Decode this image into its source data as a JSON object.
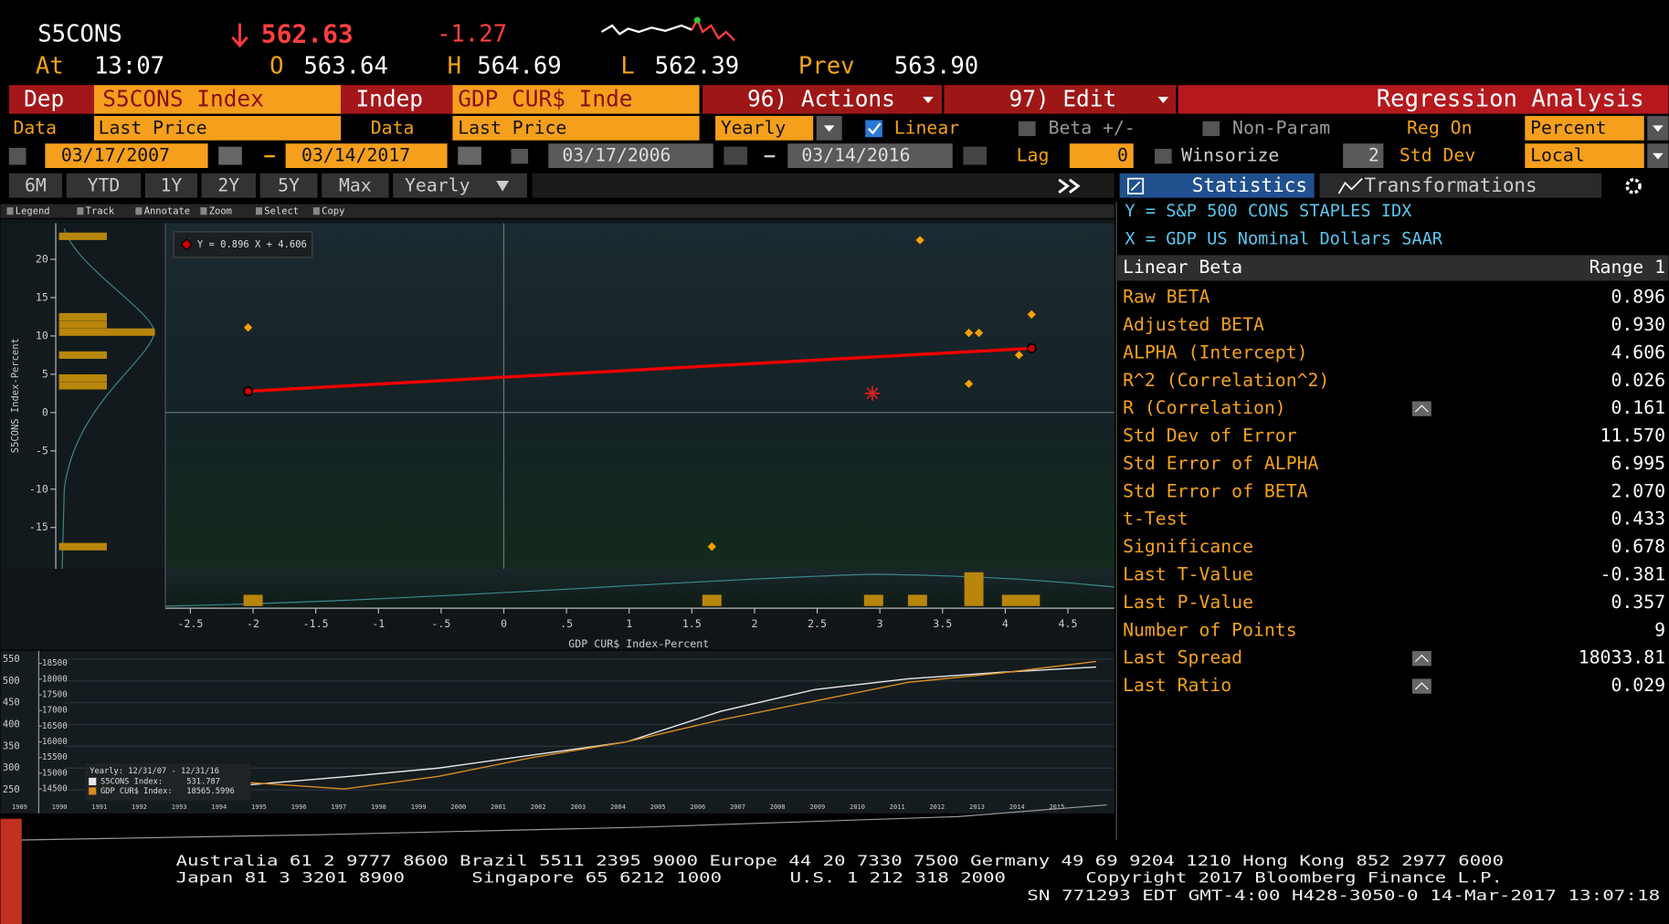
{
  "header": {
    "ticker": "S5CONS",
    "last": "562.63",
    "change": "-1.27",
    "at_label": "At",
    "time": "13:07",
    "open_label": "O",
    "open": "563.64",
    "high_label": "H",
    "high": "564.69",
    "low_label": "L",
    "low": "562.39",
    "prev_label": "Prev",
    "prev": "563.90"
  },
  "toolbar": {
    "dep_label": "Dep",
    "dep": "S5CONS Index",
    "indep_label": "Indep",
    "indep": "GDP CUR$ Inde",
    "actions": "96) Actions",
    "edit": "97) Edit",
    "title": "Regression Analysis"
  },
  "settings": {
    "dep_data_label": "Data",
    "dep_data": "Last Price",
    "indep_data_label": "Data",
    "indep_data": "Last Price",
    "frequency": "Yearly",
    "linear": "Linear",
    "beta": "Beta +/-",
    "non_param": "Non-Param",
    "reg_on_label": "Reg On",
    "reg_on": "Percent",
    "dep_start": "03/17/2007",
    "dep_end": "03/14/2017",
    "indep_start": "03/17/2006",
    "indep_end": "03/14/2016",
    "lag_label": "Lag",
    "lag": "0",
    "winsorize": "Winsorize",
    "std_dev": "2",
    "std_dev_label": "Std Dev",
    "std_mode": "Local"
  },
  "tabs": [
    "6M",
    "YTD",
    "1Y",
    "2Y",
    "5Y",
    "Max"
  ],
  "tab_period": "Yearly",
  "panel_tabs": [
    "Statistics",
    "Transformations"
  ],
  "chart_tools": [
    "Legend",
    "Track",
    "Annotate",
    "Zoom",
    "Select",
    "Copy"
  ],
  "scatter": {
    "equation": "Y = 0.896 X + 4.606",
    "x_label": "GDP CUR$ Index-Percent",
    "y_label": "S5CONS Index-Percent",
    "xlim": [
      -2.7,
      4.87
    ],
    "ylim": [
      -20.4,
      24.7
    ],
    "xticks": [
      -2.5,
      -2,
      -1.5,
      -1,
      {
        "value": -0.5,
        "label": "-.5"
      },
      0,
      {
        "value": 0.5,
        "label": ".5"
      },
      1,
      1.5,
      2,
      2.5,
      3,
      3.5,
      4,
      4.5
    ],
    "yticks": [
      20,
      15,
      10,
      5,
      0,
      -5,
      -10,
      -15
    ],
    "points": {
      "x": [
        3.32,
        -2.04,
        3.71,
        3.79,
        4.21,
        3.71,
        4.11,
        1.66
      ],
      "y": [
        22.5,
        11.1,
        10.4,
        10.4,
        12.8,
        3.75,
        7.5,
        -17.5
      ]
    },
    "current": {
      "x": 2.94,
      "y": 2.5
    },
    "fit": {
      "x": [
        -2.04,
        4.21
      ],
      "y": [
        2.78,
        8.38
      ]
    },
    "y_hist": {
      "y": [
        23,
        12.5,
        11.5,
        10.5,
        7.5,
        4.5,
        3.5,
        -17.5
      ],
      "counts": [
        1,
        1,
        1,
        2,
        1,
        1,
        1,
        1
      ]
    },
    "x_hist": {
      "x": [
        -2,
        1.66,
        2.95,
        3.3,
        3.75,
        4.05,
        4.2
      ],
      "counts": [
        1,
        1,
        1,
        1,
        3,
        1,
        1
      ]
    }
  },
  "history": {
    "legend_period": "Yearly: 12/31/07 - 12/31/16",
    "ylim": [
      196,
      562
    ],
    "yticks": [
      550,
      500,
      450,
      400,
      350,
      300,
      250
    ],
    "y2lim": [
      13720,
      18805
    ],
    "y2ticks": [
      18500,
      18000,
      17500,
      17000,
      16500,
      16000,
      15500,
      15000,
      14500
    ],
    "series": [
      {
        "name": "S5CONS Index:",
        "value": "531.787",
        "color": "#e8e8e8",
        "values": [
          262,
          280,
          300,
          330,
          360,
          430,
          480,
          505,
          520,
          532
        ]
      },
      {
        "name": "GDP CUR$ Index:",
        "value": "18565.5996",
        "color": "#d98b1e",
        "axis": "y2",
        "values": [
          14700,
          14500,
          14900,
          15500,
          16000,
          16700,
          17300,
          17900,
          18200,
          18566
        ]
      }
    ],
    "years": [
      "1989",
      "1990",
      "1991",
      "1992",
      "1993",
      "1994",
      "1995",
      "1996",
      "1997",
      "1998",
      "1999",
      "2000",
      "2001",
      "2002",
      "2003",
      "2004",
      "2005",
      "2006",
      "2007",
      "2008",
      "2009",
      "2010",
      "2011",
      "2012",
      "2013",
      "2014",
      "2015"
    ]
  },
  "statistics": {
    "y_def": "Y = S&P 500 CONS STAPLES IDX",
    "x_def": "X = GDP US Nominal Dollars SAAR",
    "header": "Linear Beta",
    "range": "Range 1",
    "rows": [
      [
        "Raw BETA",
        "0.896"
      ],
      [
        "Adjusted BETA",
        "0.930"
      ],
      [
        "ALPHA (Intercept)",
        "4.606"
      ],
      [
        "R^2 (Correlation^2)",
        "0.026"
      ],
      [
        "R (Correlation)",
        "0.161"
      ],
      [
        "Std Dev of Error",
        "11.570"
      ],
      [
        "Std Error of ALPHA",
        "6.995"
      ],
      [
        "Std Error of BETA",
        "2.070"
      ],
      [
        "t-Test",
        "0.433"
      ],
      [
        "Significance",
        "0.678"
      ],
      [
        "Last T-Value",
        "-0.381"
      ],
      [
        "Last P-Value",
        "0.357"
      ],
      [
        "Number of Points",
        "9"
      ],
      [
        "Last Spread",
        "18033.81"
      ],
      [
        "Last Ratio",
        "0.029"
      ]
    ]
  },
  "footer": {
    "line1": "Australia 61 2 9777 8600 Brazil 5511 2395 9000 Europe 44 20 7330 7500 Germany 49 69 9204 1210 Hong Kong 852 2977 6000",
    "japan": "Japan 81 3 3201 8900",
    "singapore": "Singapore 65 6212 1000",
    "us": "U.S. 1 212 318 2000",
    "copyright": "Copyright 2017 Bloomberg Finance L.P.",
    "line3": "SN 771293 EDT  GMT-4:00 H428-3050-0 14-Mar-2017 13:07:18"
  }
}
